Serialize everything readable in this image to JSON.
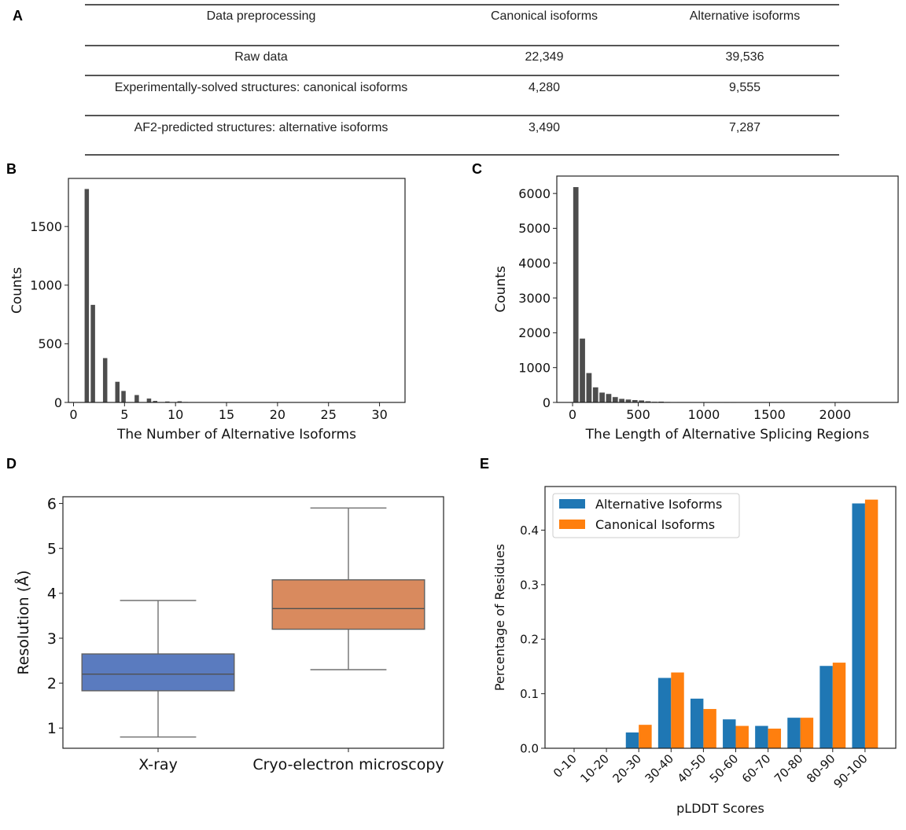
{
  "panel_labels": {
    "a": "A",
    "b": "B",
    "c": "C",
    "d": "D",
    "e": "E"
  },
  "table": {
    "headers": [
      "Data preprocessing",
      "Canonical isoforms",
      "Alternative isoforms"
    ],
    "rows": [
      [
        "Raw data",
        "22,349",
        "39,536"
      ],
      [
        "Experimentally-solved structures: canonical isoforms",
        "4,280",
        "9,555"
      ],
      [
        "AF2-predicted structures: alternative isoforms",
        "3,490",
        "7,287"
      ]
    ]
  },
  "chart_data": [
    {
      "panel": "B",
      "type": "bar",
      "title": "",
      "xlabel": "The Number of Alternative Isoforms",
      "ylabel": "Counts",
      "xlim": [
        -0.5,
        32.5
      ],
      "ylim": [
        0,
        1910
      ],
      "xticks": [
        0,
        5,
        10,
        15,
        20,
        25,
        30
      ],
      "yticks": [
        0,
        500,
        1000,
        1500
      ],
      "bar_color": "#4d4d4d",
      "bin_width": 0.55,
      "x": [
        1.3,
        1.9,
        3.1,
        4.3,
        4.9,
        6.2,
        7.4,
        8.0,
        9.2,
        10.4,
        11.0,
        12.2,
        14.0,
        15.2
      ],
      "values": [
        1822,
        834,
        380,
        178,
        100,
        65,
        35,
        15,
        10,
        12,
        6,
        3,
        3,
        1
      ],
      "grid": false
    },
    {
      "panel": "C",
      "type": "bar",
      "title": "",
      "xlabel": "The Length of Alternative Splicing Regions",
      "ylabel": "Counts",
      "xlim": [
        -120,
        2480
      ],
      "ylim": [
        0,
        6500
      ],
      "xticks": [
        0,
        500,
        1000,
        1500,
        2000
      ],
      "yticks": [
        0,
        1000,
        2000,
        3000,
        4000,
        5000,
        6000
      ],
      "bar_color": "#4d4d4d",
      "bin_width": 50,
      "x": [
        0,
        50,
        100,
        150,
        200,
        250,
        300,
        350,
        400,
        450,
        500,
        550,
        600,
        650,
        700,
        750,
        800,
        850,
        900,
        950,
        1000,
        1050,
        1100,
        1150,
        1200
      ],
      "values": [
        6190,
        1840,
        850,
        440,
        290,
        250,
        160,
        110,
        90,
        75,
        65,
        40,
        25,
        30,
        20,
        18,
        15,
        12,
        10,
        8,
        12,
        10,
        6,
        5,
        4
      ],
      "grid": false
    },
    {
      "panel": "D",
      "type": "box",
      "title": "",
      "xlabel": "",
      "ylabel": "Resolution (Å)",
      "ylim": [
        0.55,
        6.15
      ],
      "yticks": [
        1,
        2,
        3,
        4,
        5,
        6
      ],
      "categories": [
        "X-ray",
        "Cryo-electron microscopy"
      ],
      "series": [
        {
          "name": "X-ray",
          "whisker_low": 0.8,
          "q1": 1.83,
          "median": 2.2,
          "q3": 2.65,
          "whisker_high": 3.84,
          "color": "#5a7bbf"
        },
        {
          "name": "Cryo-electron microscopy",
          "whisker_low": 2.3,
          "q1": 3.2,
          "median": 3.66,
          "q3": 4.3,
          "whisker_high": 5.9,
          "color": "#d98a5e"
        }
      ],
      "grid": false
    },
    {
      "panel": "E",
      "type": "bar",
      "title": "",
      "xlabel": "pLDDT Scores",
      "ylabel": "Percentage of Residues",
      "ylim": [
        0,
        0.48
      ],
      "yticks": [
        0.0,
        0.1,
        0.2,
        0.3,
        0.4
      ],
      "categories": [
        "0-10",
        "10-20",
        "20-30",
        "30-40",
        "40-50",
        "50-60",
        "60-70",
        "70-80",
        "80-90",
        "90-100"
      ],
      "series": [
        {
          "name": "Alternative Isoforms",
          "color": "#1f77b4",
          "values": [
            0.0,
            0.0,
            0.029,
            0.129,
            0.091,
            0.053,
            0.041,
            0.056,
            0.151,
            0.449
          ]
        },
        {
          "name": "Canonical Isoforms",
          "color": "#ff7f0e",
          "values": [
            0.0,
            0.0,
            0.043,
            0.139,
            0.072,
            0.041,
            0.036,
            0.056,
            0.157,
            0.456
          ]
        }
      ],
      "legend": "top-left",
      "grid": false
    }
  ]
}
